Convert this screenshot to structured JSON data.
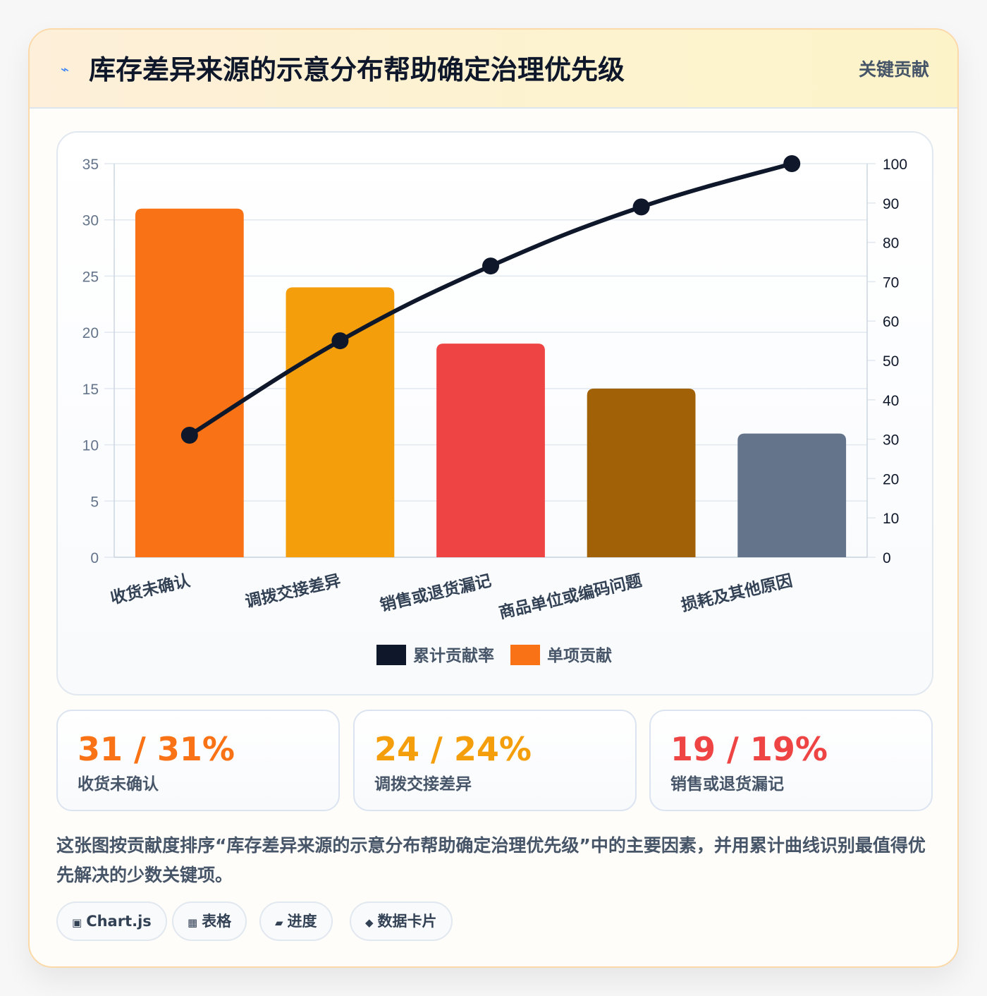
{
  "header": {
    "icon": "lightning-icon",
    "title": "库存差异来源的示意分布帮助确定治理优先级",
    "badge": "关键贡献"
  },
  "chart_data": {
    "type": "bar",
    "categories": [
      "收货未确认",
      "调拨交接差异",
      "销售或退货漏记",
      "商品单位或编码问题",
      "损耗及其他原因"
    ],
    "series": [
      {
        "name": "单项贡献",
        "type": "bar",
        "axis": "left",
        "values": [
          31,
          24,
          19,
          15,
          11
        ]
      },
      {
        "name": "累计贡献率",
        "type": "line",
        "axis": "right",
        "values": [
          31,
          55,
          74,
          89,
          100
        ]
      }
    ],
    "bar_colors": [
      "#f97316",
      "#f59e0b",
      "#ef4444",
      "#a16207",
      "#64748b"
    ],
    "line_color": "#0f172a",
    "y_left": {
      "ylim": [
        0,
        35
      ],
      "ticks": [
        0,
        5,
        10,
        15,
        20,
        25,
        30,
        35
      ]
    },
    "y_right": {
      "ylim": [
        0,
        100
      ],
      "ticks": [
        0,
        10,
        20,
        30,
        40,
        50,
        60,
        70,
        80,
        90,
        100
      ]
    },
    "legend": {
      "placement": "bottom",
      "entries": [
        {
          "label": "累计贡献率",
          "color": "#0f172a"
        },
        {
          "label": "单项贡献",
          "color": "#f97316"
        }
      ]
    },
    "grid": true
  },
  "stats": [
    {
      "value": "31 / 31%",
      "label": "收货未确认",
      "color": "#f97316"
    },
    {
      "value": "24 / 24%",
      "label": "调拨交接差异",
      "color": "#f59e0b"
    },
    {
      "value": "19 / 19%",
      "label": "销售或退货漏记",
      "color": "#ef4444"
    }
  ],
  "description": "这张图按贡献度排序“库存差异来源的示意分布帮助确定治理优先级”中的主要因素，并用累计曲线识别最值得优先解决的少数关键项。",
  "chips": [
    {
      "icon": "▣",
      "label": "Chart.js"
    },
    {
      "icon": "▦",
      "label": "表格"
    },
    {
      "icon": "▰",
      "label": "进度"
    },
    {
      "icon": "◆",
      "label": "数据卡片"
    }
  ]
}
